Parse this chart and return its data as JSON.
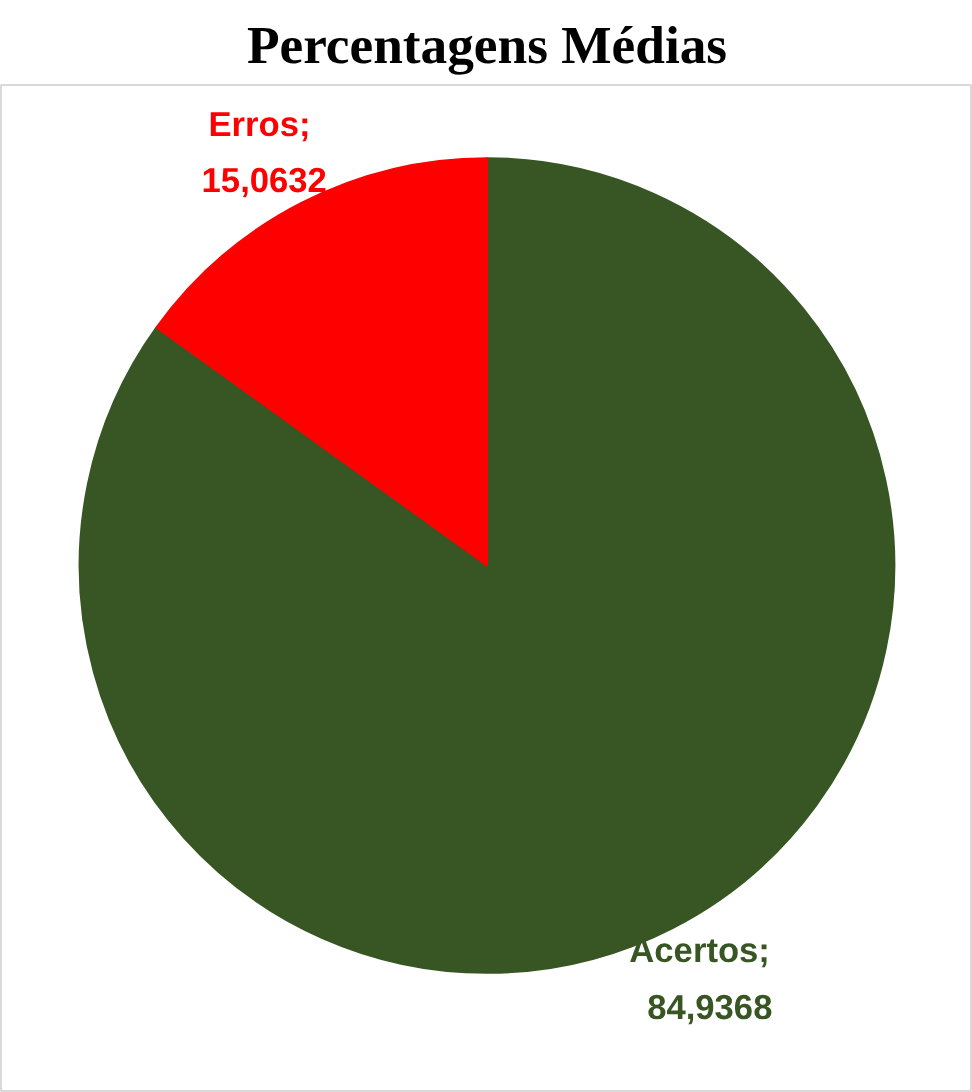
{
  "chart_data": {
    "type": "pie",
    "title": "Percentagens Médias",
    "categories": [
      "Acertos",
      "Erros"
    ],
    "values": [
      84.9368,
      15.0632
    ],
    "colors": [
      "#375623",
      "#ff0000"
    ],
    "value_labels": [
      ";\n84,9368",
      ";\n15,0632"
    ],
    "legend": false
  }
}
